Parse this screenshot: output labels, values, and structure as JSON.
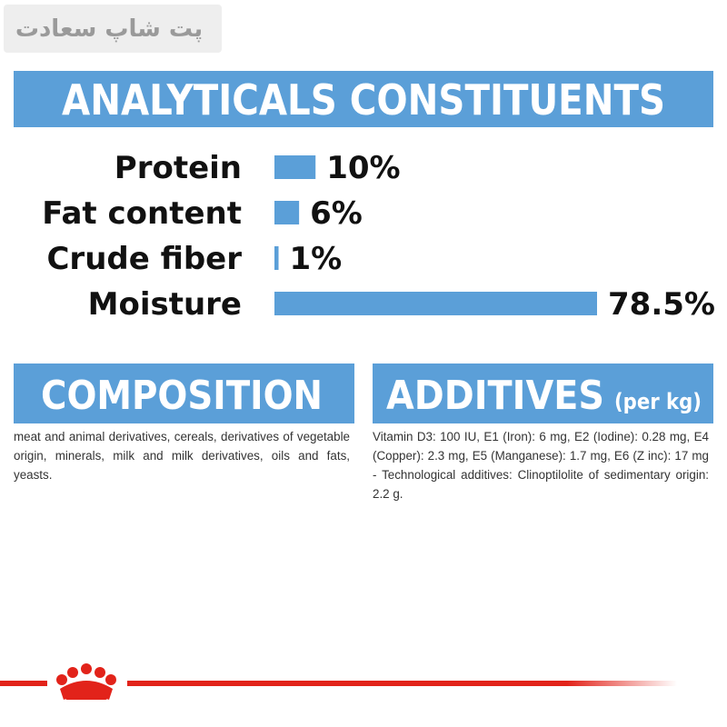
{
  "watermark": "پت شاپ سعادت",
  "analyticals": {
    "title": "ANALYTICALS CONSTITUENTS",
    "items": [
      {
        "label": "Protein",
        "value": 10,
        "value_label": "10%"
      },
      {
        "label": "Fat content",
        "value": 6,
        "value_label": "6%"
      },
      {
        "label": "Crude fiber",
        "value": 1,
        "value_label": "1%"
      },
      {
        "label": "Moisture",
        "value": 78.5,
        "value_label": "78.5%"
      }
    ]
  },
  "composition": {
    "title": "COMPOSITION",
    "text": "meat and animal derivatives, cereals, derivatives of vegetable origin, minerals, milk and milk derivatives, oils and fats, yeasts."
  },
  "additives": {
    "title": "ADDITIVES",
    "unit": "(per kg)",
    "text": "Vitamin D3: 100 IU, E1 (Iron): 6 mg, E2 (Iodine): 0.28 mg, E4 (Copper): 2.3 mg, E5 (Manganese): 1.7 mg, E6 (Z inc): 17 mg - Technological additives: Clinoptilolite of sedimentary origin: 2.2 g."
  }
}
